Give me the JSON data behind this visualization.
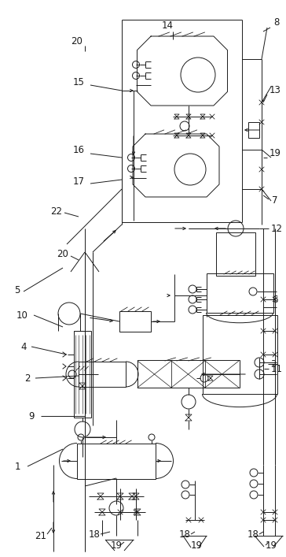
{
  "line_color": "#1a1a1a",
  "label_color": "#1a1a1a",
  "fig_width": 3.64,
  "fig_height": 7.07,
  "dpi": 100
}
